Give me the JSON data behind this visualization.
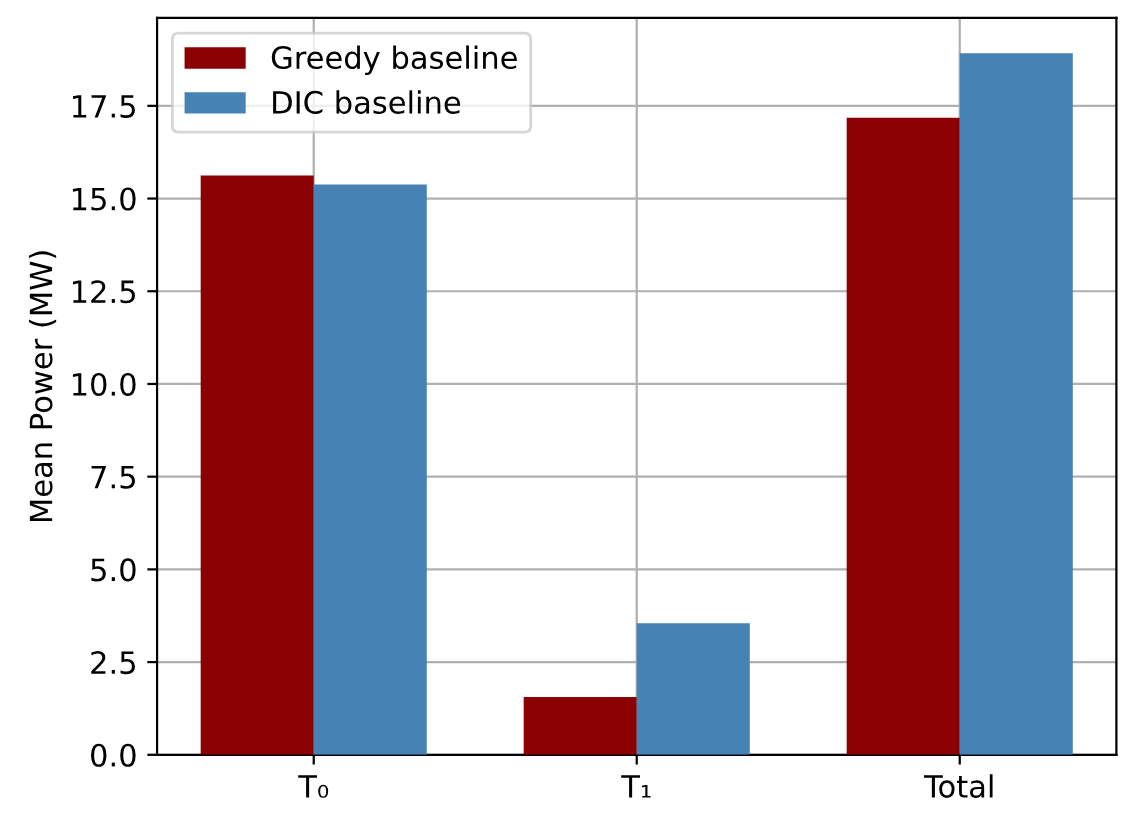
{
  "chart_data": {
    "type": "bar",
    "ylabel": "Mean Power (MW)",
    "categories": [
      "T₀",
      "T₁",
      "Total"
    ],
    "series": [
      {
        "name": "Greedy baseline",
        "color": "#8b0000",
        "values": [
          15.62,
          1.56,
          17.18
        ]
      },
      {
        "name": "DIC baseline",
        "color": "#4682b4",
        "values": [
          15.38,
          3.55,
          18.92
        ]
      }
    ],
    "ylim": [
      0,
      19.87
    ],
    "yticks": [
      {
        "value": 0,
        "label": "0.0"
      },
      {
        "value": 2.5,
        "label": "2.5"
      },
      {
        "value": 5,
        "label": "5.0"
      },
      {
        "value": 7.5,
        "label": "7.5"
      },
      {
        "value": 10,
        "label": "10.0"
      },
      {
        "value": 12.5,
        "label": "12.5"
      },
      {
        "value": 15,
        "label": "15.0"
      },
      {
        "value": 17.5,
        "label": "17.5"
      }
    ],
    "grid": true,
    "legend": "top left"
  }
}
